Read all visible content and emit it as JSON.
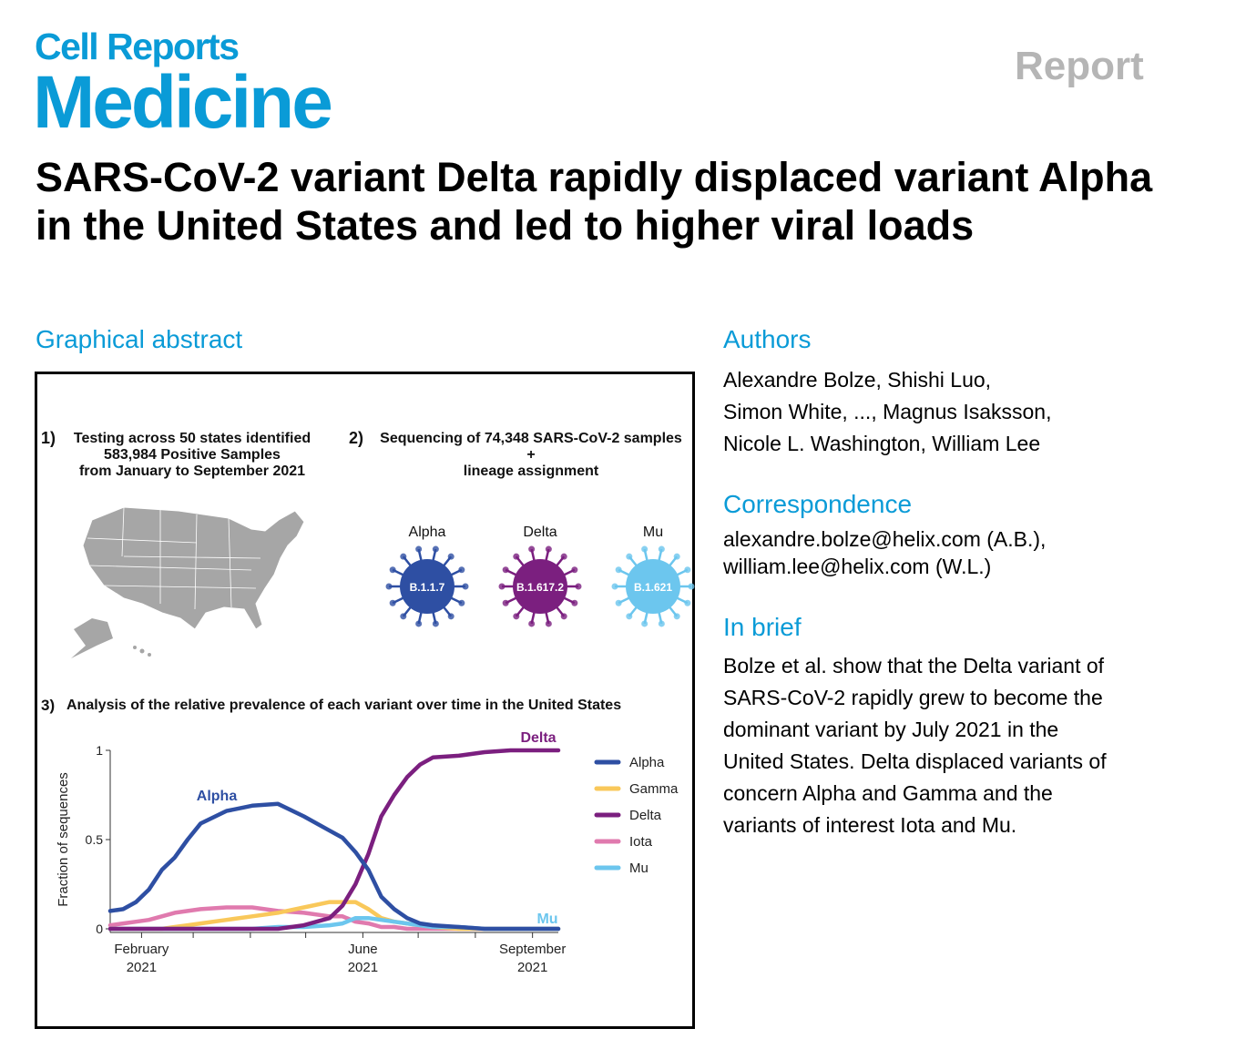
{
  "journal": {
    "line1": "Cell Reports",
    "line2": "Medicine"
  },
  "article_type": "Report",
  "title": "SARS-CoV-2 variant Delta rapidly displaced variant Alpha in the United States and led to higher viral loads",
  "graphical_abstract": {
    "heading": "Graphical abstract",
    "panel1": {
      "number": "1)",
      "lines": [
        "Testing across 50 states identified",
        "583,984 Positive Samples",
        "from January to September 2021"
      ]
    },
    "panel2": {
      "number": "2)",
      "lines": [
        "Sequencing of 74,348 SARS-CoV-2 samples",
        "+",
        "lineage assignment"
      ]
    },
    "variants": [
      {
        "name": "Alpha",
        "lineage": "B.1.1.7",
        "color": "#2e4fa3"
      },
      {
        "name": "Delta",
        "lineage": "B.1.617.2",
        "color": "#7b1f7f"
      },
      {
        "name": "Mu",
        "lineage": "B.1.621",
        "color": "#6cc6ee"
      }
    ],
    "panel3": {
      "number": "3)",
      "text": "Analysis of the relative prevalence of each variant over time in the United States"
    }
  },
  "chart_data": {
    "type": "line",
    "ylabel": "Fraction of sequences",
    "ylim": [
      0,
      1
    ],
    "yticks": [
      "0",
      "0.5",
      "1"
    ],
    "xticks": [
      {
        "line1": "February",
        "line2": "2021",
        "date": "2021-02-01"
      },
      {
        "line1": "June",
        "line2": "2021",
        "date": "2021-06-01"
      },
      {
        "line1": "September",
        "line2": "2021",
        "date": "2021-09-01"
      }
    ],
    "xlim": [
      "2021-01-15",
      "2021-09-15"
    ],
    "legend": "right",
    "x": [
      "2021-01-15",
      "2021-01-22",
      "2021-01-29",
      "2021-02-05",
      "2021-02-12",
      "2021-02-19",
      "2021-02-26",
      "2021-03-05",
      "2021-03-19",
      "2021-04-02",
      "2021-04-16",
      "2021-04-30",
      "2021-05-14",
      "2021-05-21",
      "2021-05-28",
      "2021-06-04",
      "2021-06-11",
      "2021-06-18",
      "2021-06-25",
      "2021-07-02",
      "2021-07-09",
      "2021-07-23",
      "2021-08-06",
      "2021-08-20",
      "2021-09-03",
      "2021-09-15"
    ],
    "series": [
      {
        "name": "Alpha",
        "color": "#2e4fa3",
        "label": "Alpha",
        "values": [
          0.1,
          0.11,
          0.15,
          0.22,
          0.33,
          0.4,
          0.5,
          0.59,
          0.66,
          0.69,
          0.7,
          0.63,
          0.55,
          0.51,
          0.43,
          0.33,
          0.18,
          0.11,
          0.06,
          0.03,
          0.02,
          0.01,
          0,
          0,
          0,
          0
        ]
      },
      {
        "name": "Gamma",
        "color": "#f9c85a",
        "values": [
          0,
          0,
          0,
          0,
          0,
          0.01,
          0.02,
          0.03,
          0.05,
          0.07,
          0.09,
          0.12,
          0.15,
          0.15,
          0.15,
          0.11,
          0.06,
          0.04,
          0.03,
          0.02,
          0.01,
          0,
          0,
          0,
          0,
          0
        ]
      },
      {
        "name": "Delta",
        "color": "#7b1f7f",
        "label": "Delta",
        "values": [
          0,
          0,
          0,
          0,
          0,
          0,
          0,
          0,
          0,
          0,
          0,
          0.02,
          0.06,
          0.13,
          0.25,
          0.42,
          0.63,
          0.75,
          0.85,
          0.92,
          0.96,
          0.97,
          0.99,
          1,
          1,
          1
        ]
      },
      {
        "name": "Iota",
        "color": "#e07aae",
        "values": [
          0.02,
          0.03,
          0.04,
          0.05,
          0.07,
          0.09,
          0.1,
          0.11,
          0.12,
          0.12,
          0.1,
          0.09,
          0.07,
          0.07,
          0.04,
          0.03,
          0.01,
          0.01,
          0,
          0,
          0,
          0,
          0,
          0,
          0,
          0
        ]
      },
      {
        "name": "Mu",
        "color": "#6cc6ee",
        "label": "Mu",
        "values": [
          0,
          0,
          0,
          0,
          0,
          0,
          0,
          0,
          0,
          0,
          0.01,
          0.01,
          0.02,
          0.03,
          0.06,
          0.06,
          0.05,
          0.04,
          0.03,
          0.02,
          0.01,
          0.01,
          0,
          0,
          0,
          0
        ]
      }
    ]
  },
  "authors": {
    "heading": "Authors",
    "lines": [
      "Alexandre Bolze, Shishi Luo,",
      "Simon White, ..., Magnus Isaksson,",
      "Nicole L. Washington, William Lee"
    ]
  },
  "correspondence": {
    "heading": "Correspondence",
    "lines": [
      "alexandre.bolze@helix.com (A.B.),",
      "william.lee@helix.com (W.L.)"
    ]
  },
  "in_brief": {
    "heading": "In brief",
    "lines": [
      "Bolze et al. show that the Delta variant of",
      "SARS-CoV-2 rapidly grew to become the",
      "dominant variant by July 2021 in the",
      "United States. Delta displaced variants of",
      "concern Alpha and Gamma and the",
      "variants of interest Iota and Mu."
    ]
  }
}
